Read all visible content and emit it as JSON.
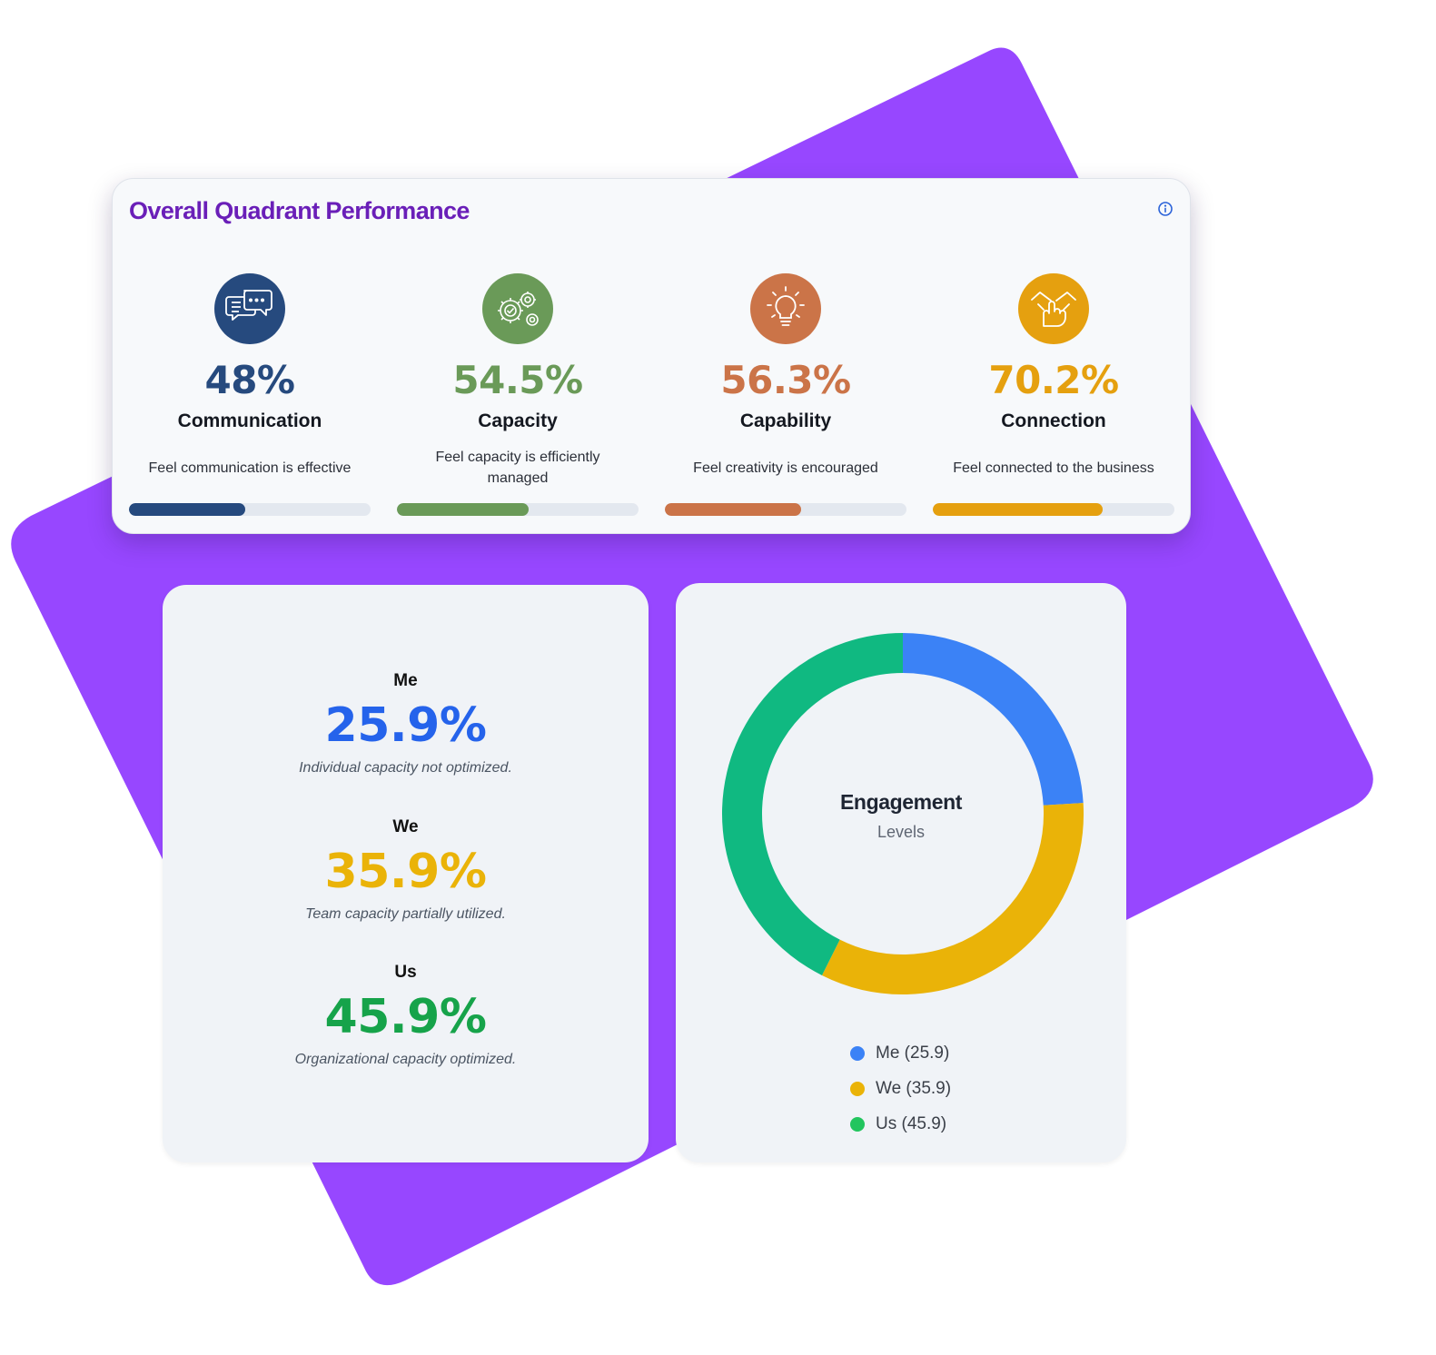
{
  "quadrant_panel": {
    "title": "Overall Quadrant Performance",
    "info_icon": "info-icon",
    "items": [
      {
        "value": "48%",
        "name": "Communication",
        "description": "Feel communication is effective",
        "progress": 0.48,
        "color": "#264a7e",
        "icon": "chat-bubbles-icon"
      },
      {
        "value": "54.5%",
        "name": "Capacity",
        "description": "Feel capacity is efficiently managed",
        "progress": 0.545,
        "color": "#6a9a58",
        "icon": "gears-icon"
      },
      {
        "value": "56.3%",
        "name": "Capability",
        "description": "Feel creativity is encouraged",
        "progress": 0.563,
        "color": "#cb7448",
        "icon": "lightbulb-icon"
      },
      {
        "value": "70.2%",
        "name": "Connection",
        "description": "Feel connected to the business",
        "progress": 0.702,
        "color": "#e5a00f",
        "icon": "handshake-icon"
      }
    ]
  },
  "capacity_stats": [
    {
      "label": "Me",
      "value": "25.9%",
      "description": "Individual capacity not optimized.",
      "color": "#2563eb"
    },
    {
      "label": "We",
      "value": "35.9%",
      "description": "Team capacity partially utilized.",
      "color": "#eab308"
    },
    {
      "label": "Us",
      "value": "45.9%",
      "description": "Organizational capacity optimized.",
      "color": "#16a34a"
    }
  ],
  "engagement": {
    "center_title": "Engagement",
    "center_subtitle": "Levels"
  },
  "chart_data": {
    "type": "pie",
    "variant": "donut",
    "categories": [
      "Me",
      "We",
      "Us"
    ],
    "values": [
      25.9,
      35.9,
      45.9
    ],
    "colors": [
      "#3b82f6",
      "#eab308",
      "#10b981"
    ],
    "legend_labels": [
      "Me (25.9)",
      "We (35.9)",
      "Us (45.9)"
    ],
    "legend_colors": [
      "#3b82f6",
      "#eab308",
      "#22c55e"
    ],
    "legend_position": "bottom"
  },
  "colors": {
    "backdrop": "#9747ff",
    "title_purple": "#6a1fb8",
    "info_blue": "#2b63d9"
  }
}
